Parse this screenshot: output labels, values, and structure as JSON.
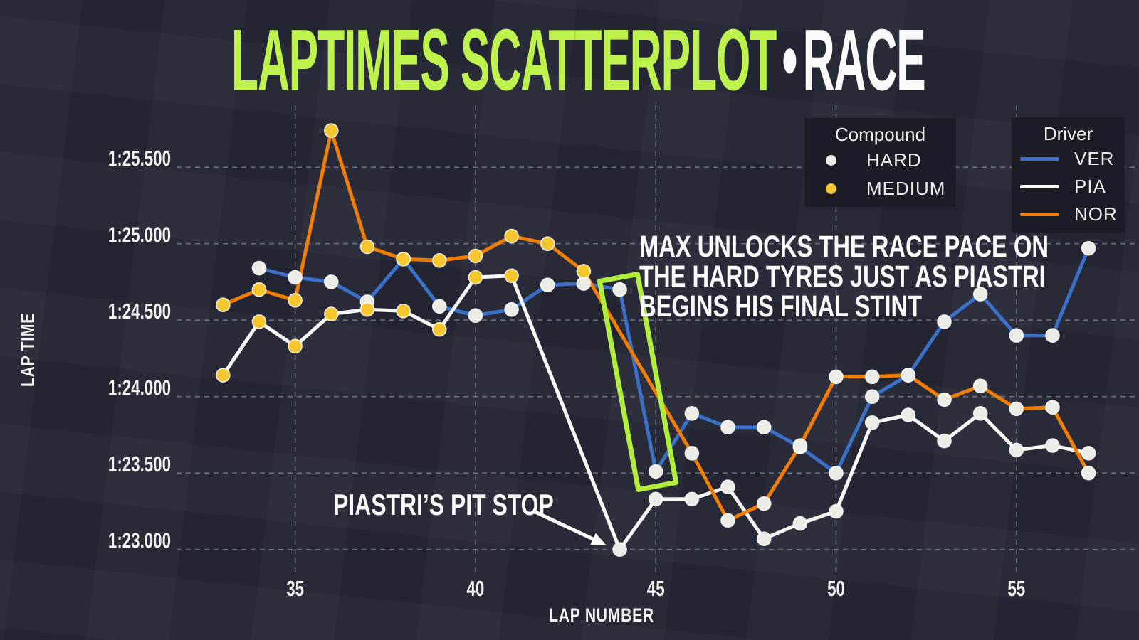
{
  "title": {
    "part1": "LAPTIMES SCATTERPLOT",
    "dot": "•",
    "part2": "RACE"
  },
  "colors": {
    "background": "#242634",
    "accent_green": "#BEF24D",
    "highlight_box": "#B2EE3E",
    "grid": "#A9B0C0",
    "text": "#F5F5F3",
    "legend_bg": "#1B1C25",
    "compound": {
      "HARD": "#ECECE6",
      "MEDIUM": "#F5C62E"
    }
  },
  "legend_compound": {
    "title": "Compound",
    "items": [
      {
        "label": "HARD",
        "color": "#ECECE6"
      },
      {
        "label": "MEDIUM",
        "color": "#F5C62E"
      }
    ]
  },
  "legend_driver": {
    "title": "Driver",
    "items": [
      {
        "label": "VER",
        "color": "#3B70C9"
      },
      {
        "label": "PIA",
        "color": "#F8F8F6"
      },
      {
        "label": "NOR",
        "color": "#F07D04"
      }
    ]
  },
  "annotations": {
    "max_pace": {
      "lines": [
        "MAX UNLOCKS THE RACE PACE ON",
        "THE HARD TYRES JUST AS PIASTRI",
        "BEGINS HIS FINAL STINT"
      ]
    },
    "pit_stop": {
      "text": "PIASTRI’S PIT STOP"
    }
  },
  "chart_data": {
    "type": "scatter",
    "title": "LAPTIMES SCATTERPLOT • RACE",
    "xlabel": "LAP NUMBER",
    "ylabel": "LAP TIME",
    "grid": true,
    "legend_position": "upper right",
    "x_ticks": [
      35,
      40,
      45,
      50,
      55
    ],
    "y_ticks": [
      {
        "label": "1:25.500",
        "sec": 85.5
      },
      {
        "label": "1:25.000",
        "sec": 85.0
      },
      {
        "label": "1:24.500",
        "sec": 84.5
      },
      {
        "label": "1:24.000",
        "sec": 84.0
      },
      {
        "label": "1:23.500",
        "sec": 83.5
      },
      {
        "label": "1:23.000",
        "sec": 83.0
      }
    ],
    "xlim": [
      32,
      58.5
    ],
    "ylim_seconds": [
      82.85,
      85.9
    ],
    "time_unit_note": "seconds, 83.0 = 1:23.000",
    "series": [
      {
        "name": "VER",
        "color": "#3B70C9",
        "points": [
          [
            34,
            84.84,
            "HARD"
          ],
          [
            35,
            84.78,
            "HARD"
          ],
          [
            36,
            84.75,
            "HARD"
          ],
          [
            37,
            84.62,
            "HARD"
          ],
          [
            38,
            84.9,
            "HARD"
          ],
          [
            39,
            84.59,
            "HARD"
          ],
          [
            40,
            84.53,
            "HARD"
          ],
          [
            41,
            84.57,
            "HARD"
          ],
          [
            42,
            84.73,
            "HARD"
          ],
          [
            43,
            84.74,
            "HARD"
          ],
          [
            44,
            84.7,
            "HARD"
          ],
          [
            45,
            83.51,
            "HARD"
          ],
          [
            46,
            83.89,
            "HARD"
          ],
          [
            47,
            83.8,
            "HARD"
          ],
          [
            48,
            83.8,
            "HARD"
          ],
          [
            49,
            83.67,
            "HARD"
          ],
          [
            50,
            83.5,
            "HARD"
          ],
          [
            51,
            84.0,
            "HARD"
          ],
          [
            52,
            84.14,
            "HARD"
          ],
          [
            53,
            84.49,
            "HARD"
          ],
          [
            54,
            84.67,
            "HARD"
          ],
          [
            55,
            84.4,
            "HARD"
          ],
          [
            56,
            84.4,
            "HARD"
          ],
          [
            57,
            84.97,
            "HARD"
          ]
        ]
      },
      {
        "name": "PIA",
        "color": "#F8F8F6",
        "points": [
          [
            33,
            84.14,
            "MEDIUM"
          ],
          [
            34,
            84.49,
            "MEDIUM"
          ],
          [
            35,
            84.33,
            "MEDIUM"
          ],
          [
            36,
            84.54,
            "MEDIUM"
          ],
          [
            37,
            84.57,
            "MEDIUM"
          ],
          [
            38,
            84.56,
            "MEDIUM"
          ],
          [
            39,
            84.44,
            "MEDIUM"
          ],
          [
            40,
            84.78,
            "MEDIUM"
          ],
          [
            41,
            84.79,
            "MEDIUM"
          ],
          [
            44,
            83.0,
            "HARD"
          ],
          [
            45,
            83.33,
            "HARD"
          ],
          [
            46,
            83.33,
            "HARD"
          ],
          [
            47,
            83.41,
            "HARD"
          ],
          [
            48,
            83.07,
            "HARD"
          ],
          [
            49,
            83.17,
            "HARD"
          ],
          [
            50,
            83.25,
            "HARD"
          ],
          [
            51,
            83.83,
            "HARD"
          ],
          [
            52,
            83.88,
            "HARD"
          ],
          [
            53,
            83.71,
            "HARD"
          ],
          [
            54,
            83.89,
            "HARD"
          ],
          [
            55,
            83.65,
            "HARD"
          ],
          [
            56,
            83.68,
            "HARD"
          ],
          [
            57,
            83.63,
            "HARD"
          ]
        ]
      },
      {
        "name": "NOR",
        "color": "#F07D04",
        "points": [
          [
            33,
            84.6,
            "MEDIUM"
          ],
          [
            34,
            84.7,
            "MEDIUM"
          ],
          [
            35,
            84.63,
            "MEDIUM"
          ],
          [
            36,
            85.74,
            "MEDIUM"
          ],
          [
            37,
            84.98,
            "MEDIUM"
          ],
          [
            38,
            84.9,
            "MEDIUM"
          ],
          [
            39,
            84.89,
            "MEDIUM"
          ],
          [
            40,
            84.92,
            "MEDIUM"
          ],
          [
            41,
            85.05,
            "MEDIUM"
          ],
          [
            42,
            85.0,
            "MEDIUM"
          ],
          [
            43,
            84.82,
            "MEDIUM"
          ],
          [
            46,
            83.63,
            "HARD"
          ],
          [
            47,
            83.19,
            "HARD"
          ],
          [
            48,
            83.3,
            "HARD"
          ],
          [
            49,
            83.68,
            "HARD"
          ],
          [
            50,
            84.13,
            "HARD"
          ],
          [
            51,
            84.13,
            "HARD"
          ],
          [
            52,
            84.14,
            "HARD"
          ],
          [
            53,
            83.98,
            "HARD"
          ],
          [
            54,
            84.07,
            "HARD"
          ],
          [
            55,
            83.92,
            "HARD"
          ],
          [
            56,
            83.93,
            "HARD"
          ],
          [
            57,
            83.5,
            "HARD"
          ]
        ]
      }
    ]
  }
}
